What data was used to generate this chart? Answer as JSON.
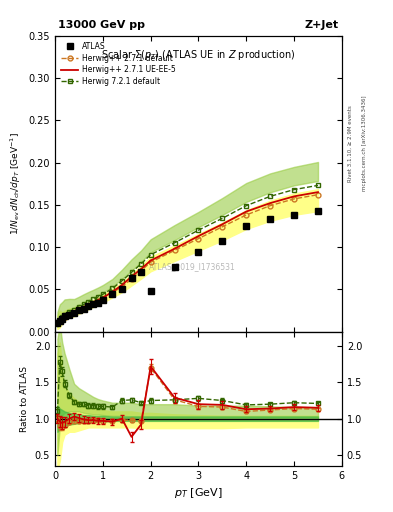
{
  "title_top": "13000 GeV pp",
  "title_right": "Z+Jet",
  "plot_title": "Scalar $\\Sigma(p_T)$ (ATLAS UE in $Z$ production)",
  "watermark": "ATLAS_2019_I1736531",
  "right_label_top": "Rivet 3.1.10, ≥ 2.9M events",
  "right_label_bottom": "mcplots.cern.ch [arXiv:1306.3436]",
  "atlas_x": [
    0.05,
    0.1,
    0.15,
    0.2,
    0.3,
    0.4,
    0.5,
    0.6,
    0.7,
    0.8,
    0.9,
    1.0,
    1.2,
    1.4,
    1.6,
    1.8,
    2.0,
    2.5,
    3.0,
    3.5,
    4.0,
    4.5,
    5.0,
    5.5
  ],
  "atlas_y": [
    0.01,
    0.013,
    0.015,
    0.018,
    0.02,
    0.022,
    0.025,
    0.027,
    0.03,
    0.032,
    0.034,
    0.037,
    0.044,
    0.05,
    0.063,
    0.071,
    0.048,
    0.076,
    0.094,
    0.107,
    0.125,
    0.133,
    0.138,
    0.143
  ],
  "hw_def_x": [
    0.05,
    0.1,
    0.15,
    0.2,
    0.3,
    0.4,
    0.5,
    0.6,
    0.7,
    0.8,
    0.9,
    1.0,
    1.2,
    1.4,
    1.6,
    1.8,
    2.0,
    2.5,
    3.0,
    3.5,
    4.0,
    4.5,
    5.0,
    5.5
  ],
  "hw_def_y": [
    0.01,
    0.012,
    0.014,
    0.017,
    0.02,
    0.022,
    0.025,
    0.027,
    0.03,
    0.033,
    0.036,
    0.039,
    0.046,
    0.053,
    0.062,
    0.072,
    0.082,
    0.096,
    0.11,
    0.124,
    0.138,
    0.149,
    0.157,
    0.162
  ],
  "hw_def_color": "#cc7722",
  "hw_ue_x": [
    0.05,
    0.1,
    0.15,
    0.2,
    0.3,
    0.4,
    0.5,
    0.6,
    0.7,
    0.8,
    0.9,
    1.0,
    1.2,
    1.4,
    1.6,
    1.8,
    2.0,
    2.5,
    3.0,
    3.5,
    4.0,
    4.5,
    5.0,
    5.5
  ],
  "hw_ue_y": [
    0.01,
    0.013,
    0.015,
    0.018,
    0.021,
    0.024,
    0.026,
    0.029,
    0.032,
    0.035,
    0.037,
    0.04,
    0.047,
    0.055,
    0.065,
    0.074,
    0.084,
    0.098,
    0.113,
    0.127,
    0.142,
    0.152,
    0.16,
    0.165
  ],
  "hw_ue_color": "#cc0000",
  "hw721_x": [
    0.05,
    0.1,
    0.15,
    0.2,
    0.3,
    0.4,
    0.5,
    0.6,
    0.7,
    0.8,
    0.9,
    1.0,
    1.2,
    1.4,
    1.6,
    1.8,
    2.0,
    2.5,
    3.0,
    3.5,
    4.0,
    4.5,
    5.0,
    5.5
  ],
  "hw721_y": [
    0.011,
    0.014,
    0.017,
    0.02,
    0.023,
    0.026,
    0.029,
    0.032,
    0.035,
    0.038,
    0.041,
    0.044,
    0.051,
    0.06,
    0.07,
    0.08,
    0.091,
    0.105,
    0.12,
    0.134,
    0.149,
    0.16,
    0.168,
    0.173
  ],
  "hw721_color": "#336600",
  "yellow_band_lo": [
    0.3,
    0.42,
    0.68,
    0.78,
    0.82,
    0.82,
    0.84,
    0.86,
    0.88,
    0.88,
    0.88,
    0.88,
    0.88,
    0.88,
    0.88,
    0.87,
    0.87,
    0.87,
    0.87,
    0.87,
    0.88,
    0.88,
    0.88,
    0.88
  ],
  "yellow_band_hi": [
    1.9,
    2.05,
    1.6,
    1.45,
    1.35,
    1.28,
    1.23,
    1.18,
    1.16,
    1.14,
    1.12,
    1.12,
    1.1,
    1.1,
    1.1,
    1.08,
    1.08,
    1.06,
    1.05,
    1.04,
    1.04,
    1.04,
    1.04,
    1.04
  ],
  "green_band_lo": [
    0.5,
    0.9,
    1.05,
    1.08,
    1.1,
    1.1,
    1.1,
    1.08,
    1.07,
    1.06,
    1.06,
    1.05,
    1.04,
    1.04,
    1.03,
    1.03,
    1.03,
    1.03,
    1.03,
    1.03,
    1.03,
    1.03,
    1.03,
    1.03
  ],
  "green_band_hi": [
    2.1,
    2.3,
    2.05,
    1.9,
    1.68,
    1.48,
    1.42,
    1.38,
    1.34,
    1.3,
    1.27,
    1.25,
    1.22,
    1.22,
    1.22,
    1.2,
    1.2,
    1.2,
    1.18,
    1.18,
    1.18,
    1.17,
    1.16,
    1.16
  ],
  "atlas_sys_lo": [
    0.82,
    0.86,
    0.88,
    0.9,
    0.92,
    0.93,
    0.94,
    0.95,
    0.95,
    0.96,
    0.96,
    0.96,
    0.97,
    0.97,
    0.97,
    0.97,
    0.97,
    0.97,
    0.97,
    0.97,
    0.97,
    0.97,
    0.97,
    0.97
  ],
  "atlas_sys_hi": [
    1.18,
    1.14,
    1.12,
    1.1,
    1.08,
    1.07,
    1.06,
    1.05,
    1.05,
    1.04,
    1.04,
    1.04,
    1.03,
    1.03,
    1.03,
    1.03,
    1.03,
    1.03,
    1.03,
    1.03,
    1.03,
    1.03,
    1.03,
    1.03
  ],
  "ratio_hw_def": [
    1.0,
    0.9,
    0.88,
    0.92,
    0.96,
    0.97,
    0.97,
    0.97,
    0.97,
    0.98,
    0.98,
    0.97,
    0.97,
    0.98,
    0.98,
    0.97,
    1.7,
    1.26,
    1.17,
    1.16,
    1.1,
    1.12,
    1.14,
    1.13
  ],
  "ratio_hw_def_err": [
    0.05,
    0.05,
    0.04,
    0.04,
    0.03,
    0.03,
    0.03,
    0.03,
    0.03,
    0.03,
    0.03,
    0.03,
    0.02,
    0.02,
    0.02,
    0.02,
    0.05,
    0.04,
    0.03,
    0.03,
    0.02,
    0.02,
    0.02,
    0.02
  ],
  "ratio_hw_ue": [
    1.0,
    0.96,
    0.94,
    0.96,
    1.0,
    1.03,
    1.01,
    0.99,
    0.98,
    0.98,
    0.97,
    0.97,
    0.96,
    1.0,
    0.75,
    0.92,
    1.72,
    1.29,
    1.2,
    1.19,
    1.13,
    1.14,
    1.16,
    1.15
  ],
  "ratio_hw_ue_err": [
    0.06,
    0.08,
    0.08,
    0.07,
    0.06,
    0.05,
    0.05,
    0.05,
    0.04,
    0.04,
    0.04,
    0.04,
    0.04,
    0.05,
    0.07,
    0.06,
    0.1,
    0.07,
    0.06,
    0.05,
    0.04,
    0.04,
    0.04,
    0.04
  ],
  "ratio_hw721": [
    1.1,
    1.78,
    1.65,
    1.48,
    1.32,
    1.23,
    1.2,
    1.2,
    1.18,
    1.18,
    1.17,
    1.17,
    1.16,
    1.25,
    1.26,
    1.22,
    1.25,
    1.26,
    1.28,
    1.25,
    1.19,
    1.2,
    1.22,
    1.21
  ],
  "ratio_hw721_err": [
    0.06,
    0.08,
    0.06,
    0.05,
    0.04,
    0.03,
    0.03,
    0.03,
    0.03,
    0.03,
    0.03,
    0.03,
    0.02,
    0.03,
    0.03,
    0.02,
    0.03,
    0.03,
    0.03,
    0.03,
    0.02,
    0.02,
    0.02,
    0.02
  ],
  "xlim": [
    0.0,
    6.0
  ],
  "main_ylim": [
    0.0,
    0.35
  ],
  "ratio_ylim": [
    0.35,
    2.2
  ],
  "ratio_yticks": [
    0.5,
    1.0,
    1.5,
    2.0
  ]
}
